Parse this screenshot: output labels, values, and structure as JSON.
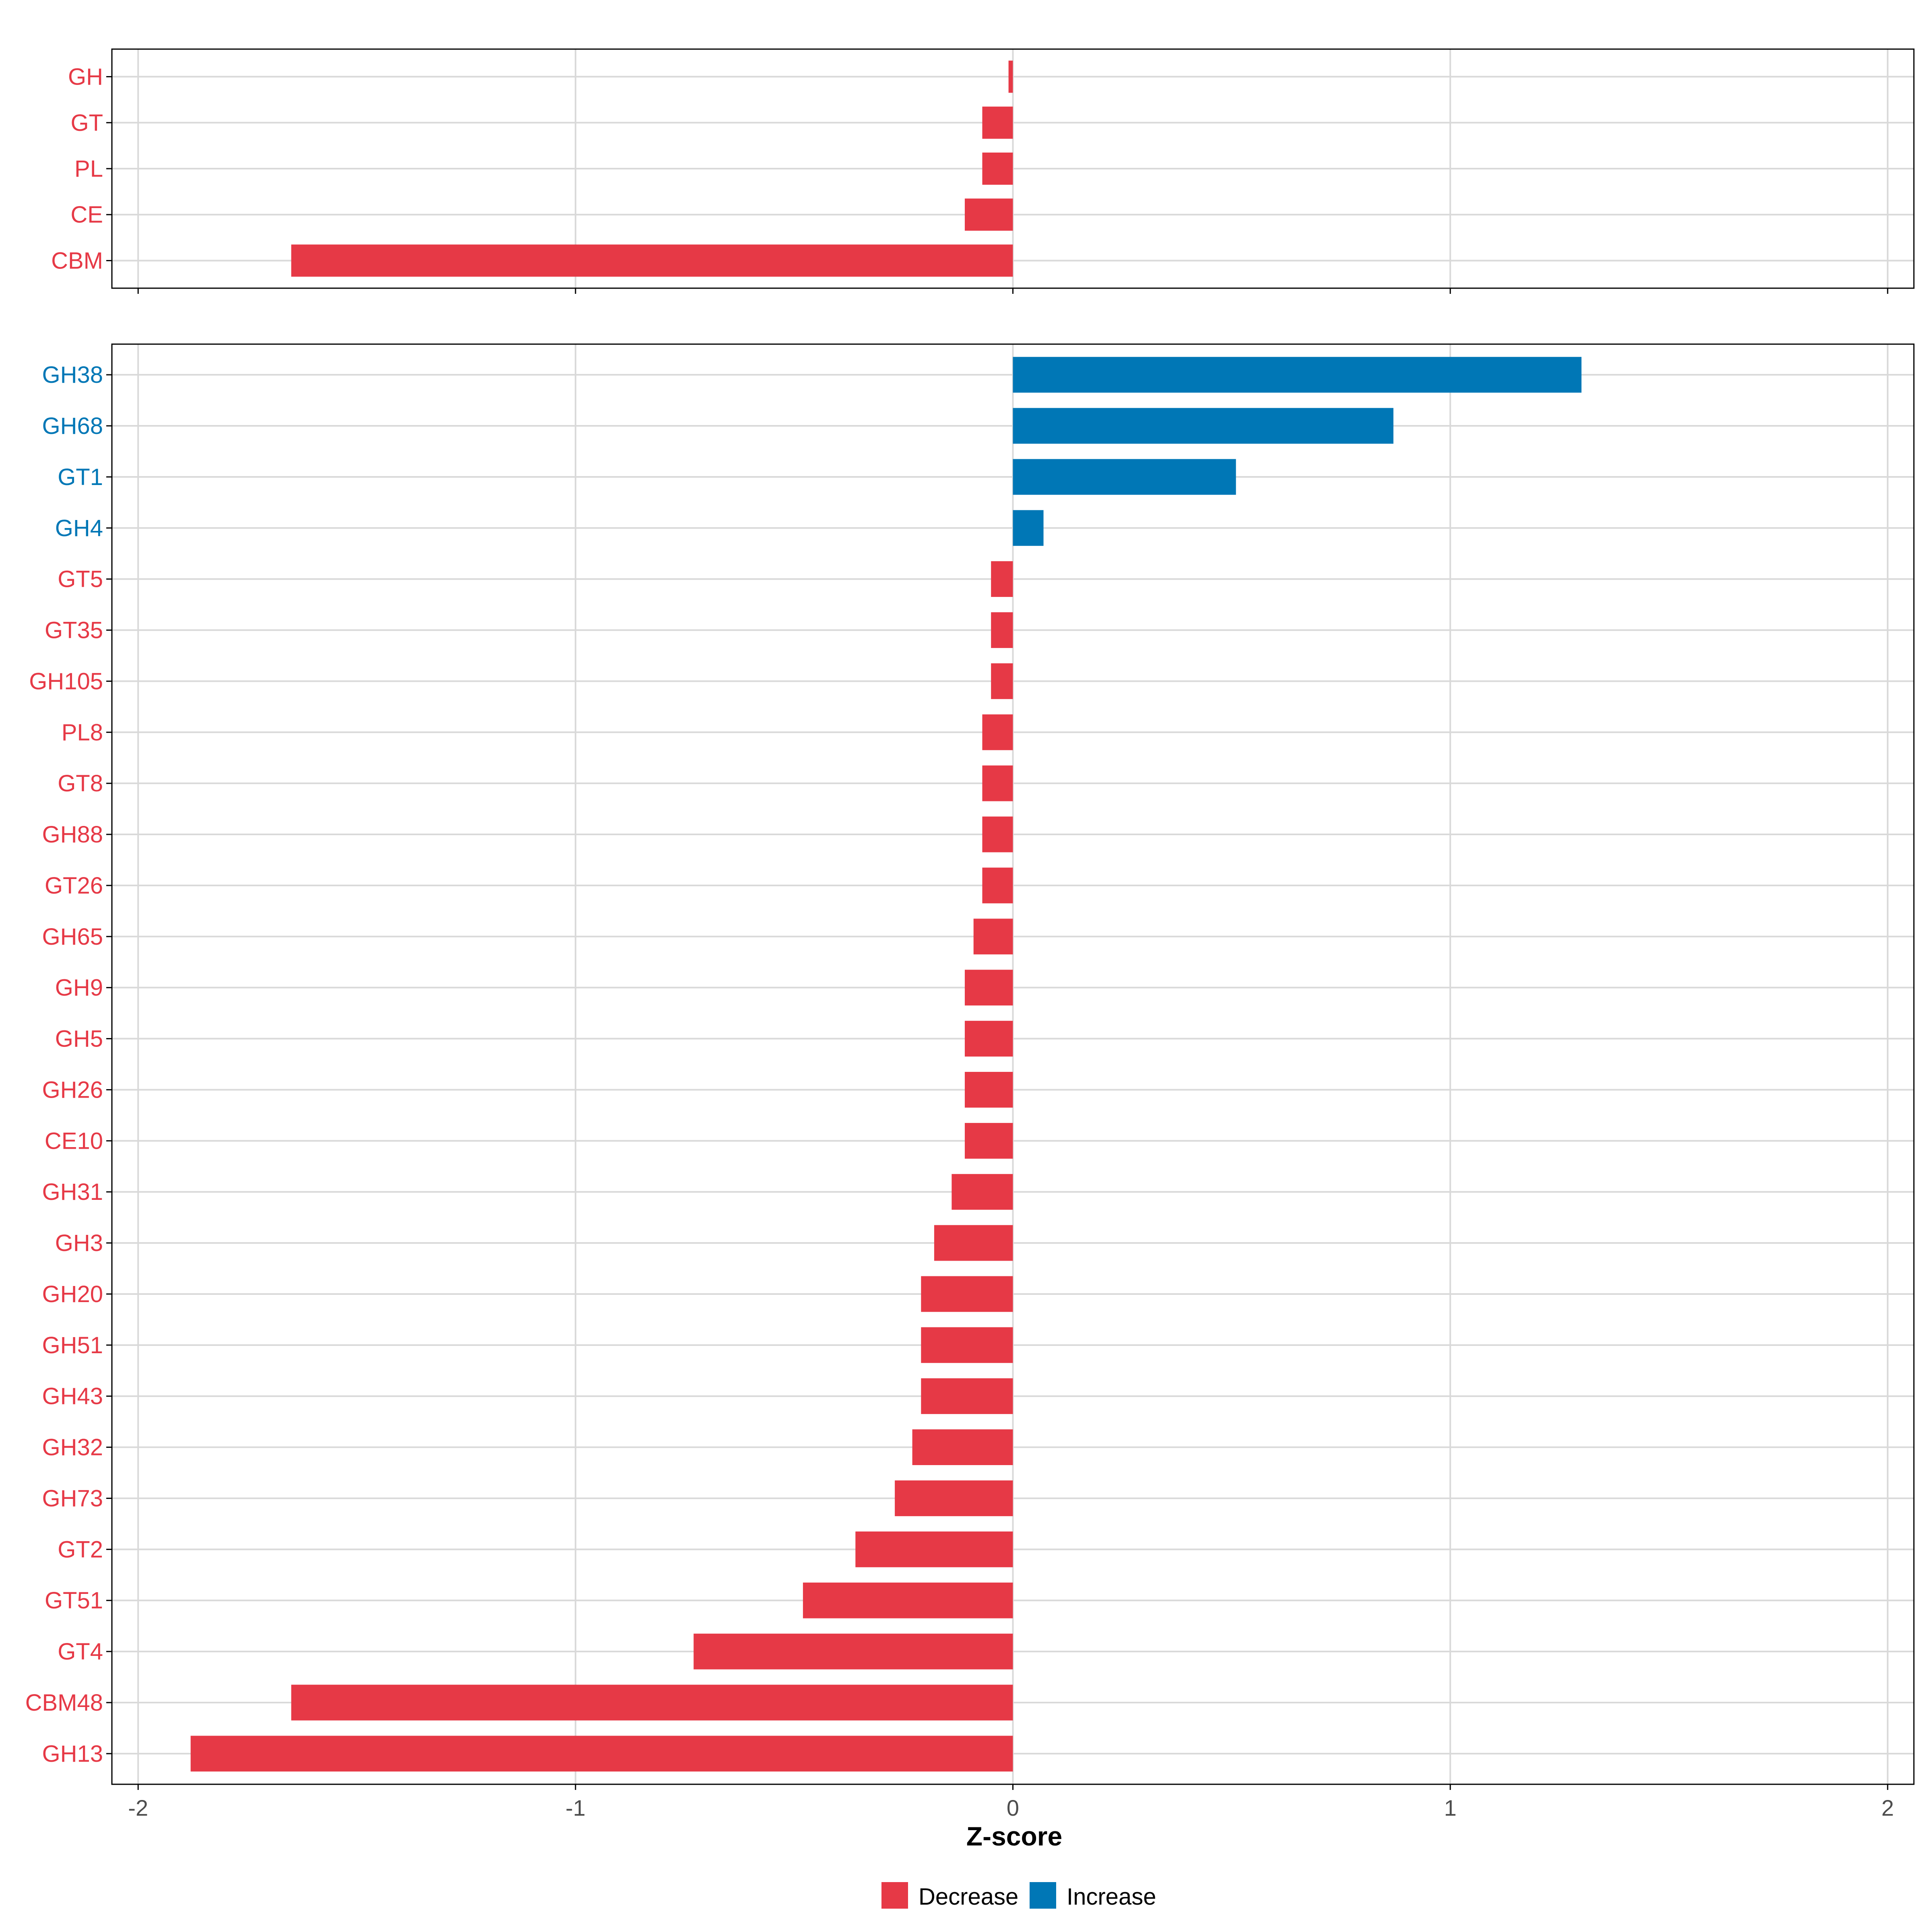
{
  "colors": {
    "decrease": "#E63946",
    "increase": "#0077B6",
    "grid": "#D9D9D9",
    "axis": "#000000",
    "tick_text": "#4D4D4D"
  },
  "chart_data": [
    {
      "type": "bar",
      "orientation": "horizontal",
      "panel": "top",
      "xlim": [
        -2.06,
        2.06
      ],
      "categories": [
        "GH",
        "GT",
        "PL",
        "CE",
        "CBM"
      ],
      "values": [
        -0.01,
        -0.07,
        -0.07,
        -0.11,
        -1.65
      ],
      "direction": [
        "Decrease",
        "Decrease",
        "Decrease",
        "Decrease",
        "Decrease"
      ]
    },
    {
      "type": "bar",
      "orientation": "horizontal",
      "panel": "bottom",
      "xlim": [
        -2.06,
        2.06
      ],
      "xticks": [
        -2,
        -1,
        0,
        1,
        2
      ],
      "xtick_labels": [
        "-2",
        "-1",
        "0",
        "1",
        "2"
      ],
      "xlabel": "Z-score",
      "categories": [
        "GH38",
        "GH68",
        "GT1",
        "GH4",
        "GT5",
        "GT35",
        "GH105",
        "PL8",
        "GT8",
        "GH88",
        "GT26",
        "GH65",
        "GH9",
        "GH5",
        "GH26",
        "CE10",
        "GH31",
        "GH3",
        "GH20",
        "GH51",
        "GH43",
        "GH32",
        "GH73",
        "GT2",
        "GT51",
        "GT4",
        "CBM48",
        "GH13"
      ],
      "values": [
        1.3,
        0.87,
        0.51,
        0.07,
        -0.05,
        -0.05,
        -0.05,
        -0.07,
        -0.07,
        -0.07,
        -0.07,
        -0.09,
        -0.11,
        -0.11,
        -0.11,
        -0.11,
        -0.14,
        -0.18,
        -0.21,
        -0.21,
        -0.21,
        -0.23,
        -0.27,
        -0.36,
        -0.48,
        -0.73,
        -1.65,
        -1.88
      ],
      "direction": [
        "Increase",
        "Increase",
        "Increase",
        "Increase",
        "Decrease",
        "Decrease",
        "Decrease",
        "Decrease",
        "Decrease",
        "Decrease",
        "Decrease",
        "Decrease",
        "Decrease",
        "Decrease",
        "Decrease",
        "Decrease",
        "Decrease",
        "Decrease",
        "Decrease",
        "Decrease",
        "Decrease",
        "Decrease",
        "Decrease",
        "Decrease",
        "Decrease",
        "Decrease",
        "Decrease",
        "Decrease"
      ]
    }
  ],
  "legend": {
    "position": "bottom",
    "items": [
      {
        "label": "Decrease",
        "color_key": "decrease"
      },
      {
        "label": "Increase",
        "color_key": "increase"
      }
    ]
  }
}
